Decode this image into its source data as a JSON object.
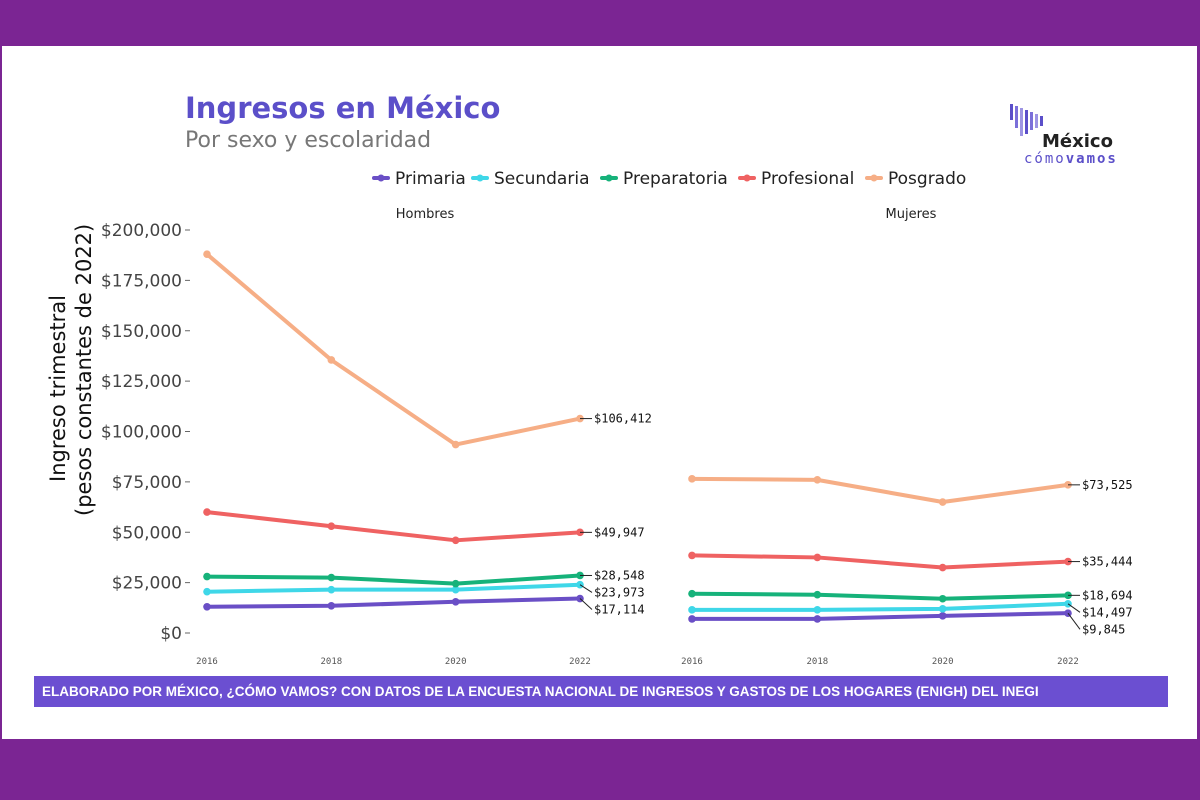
{
  "header": {
    "title": "Ingresos en México",
    "subtitle": "Por sexo y escolaridad"
  },
  "logo": {
    "name": "México",
    "tagline_1": "cómo",
    "tagline_2": "vamos",
    "colors": [
      "#5b4fc9",
      "#7b6fd9",
      "#9d94e3"
    ]
  },
  "source": "ELABORADO POR MÉXICO, ¿CÓMO VAMOS? CON DATOS DE LA ENCUESTA NACIONAL DE INGRESOS Y GASTOS DE LOS HOGARES (ENIGH) DEL INEGI",
  "chart_data": {
    "type": "line",
    "ylabel_line1": "Ingreso trimestral",
    "ylabel_line2": "(pesos constantes de 2022)",
    "ylim": [
      0,
      200000
    ],
    "y_ticks": [
      "$0",
      "$25,000",
      "$50,000",
      "$75,000",
      "$100,000",
      "$125,000",
      "$150,000",
      "$175,000",
      "$200,000"
    ],
    "y_tick_values": [
      0,
      25000,
      50000,
      75000,
      100000,
      125000,
      150000,
      175000,
      200000
    ],
    "x": [
      "2016",
      "2018",
      "2020",
      "2022"
    ],
    "grid": false,
    "legend_position": "top",
    "series_legend": [
      {
        "name": "Primaria",
        "color": "#6a4fc6"
      },
      {
        "name": "Secundaria",
        "color": "#3fd7e8"
      },
      {
        "name": "Preparatoria",
        "color": "#16b27a"
      },
      {
        "name": "Profesional",
        "color": "#ef6262"
      },
      {
        "name": "Posgrado",
        "color": "#f6ae86"
      }
    ],
    "panels": [
      {
        "title": "Hombres",
        "series": [
          {
            "name": "Primaria",
            "values": [
              13000,
              13500,
              15500,
              17114
            ],
            "end_label": "$17,114"
          },
          {
            "name": "Secundaria",
            "values": [
              20500,
              21500,
              21500,
              23973
            ],
            "end_label": "$23,973"
          },
          {
            "name": "Preparatoria",
            "values": [
              28000,
              27500,
              24500,
              28548
            ],
            "end_label": "$28,548"
          },
          {
            "name": "Profesional",
            "values": [
              60000,
              53000,
              46000,
              49947
            ],
            "end_label": "$49,947"
          },
          {
            "name": "Posgrado",
            "values": [
              188000,
              135500,
              93500,
              106412
            ],
            "end_label": "$106,412"
          }
        ]
      },
      {
        "title": "Mujeres",
        "series": [
          {
            "name": "Primaria",
            "values": [
              7000,
              7000,
              8500,
              9845
            ],
            "end_label": "$9,845"
          },
          {
            "name": "Secundaria",
            "values": [
              11500,
              11500,
              12000,
              14497
            ],
            "end_label": "$14,497"
          },
          {
            "name": "Preparatoria",
            "values": [
              19500,
              19000,
              17000,
              18694
            ],
            "end_label": "$18,694"
          },
          {
            "name": "Profesional",
            "values": [
              38500,
              37500,
              32500,
              35444
            ],
            "end_label": "$35,444"
          },
          {
            "name": "Posgrado",
            "values": [
              76500,
              76000,
              65000,
              73525
            ],
            "end_label": "$73,525"
          }
        ]
      }
    ]
  }
}
